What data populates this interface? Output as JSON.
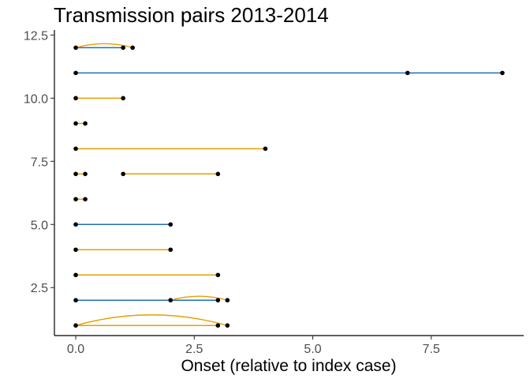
{
  "chart_data": {
    "type": "line",
    "title": "Transmission pairs 2013-2014",
    "xlabel": "Onset (relative to index case)",
    "ylabel": "",
    "xlim": [
      -0.45,
      9.45
    ],
    "ylim": [
      0.6,
      12.7
    ],
    "x_ticks": [
      0.0,
      2.5,
      5.0,
      7.5
    ],
    "x_tick_labels": [
      "0.0",
      "2.5",
      "5.0",
      "7.5"
    ],
    "y_ticks": [
      2.5,
      5.0,
      7.5,
      10.0,
      12.5
    ],
    "y_tick_labels": [
      "2.5",
      "5.0",
      "7.5",
      "10.0",
      "12.5"
    ],
    "colors": {
      "blue": "#1f6fb4",
      "orange": "#e69f00",
      "point": "#000000"
    },
    "series": [
      {
        "color": "blue",
        "segments": [
          {
            "x1": 0.0,
            "x2": 1.0,
            "y": 12
          },
          {
            "x1": 0.0,
            "x2": 7.0,
            "y": 11
          },
          {
            "x1": 7.0,
            "x2": 9.0,
            "y": 11
          },
          {
            "x1": 0.0,
            "x2": 2.0,
            "y": 5
          },
          {
            "x1": 0.0,
            "x2": 2.0,
            "y": 2
          },
          {
            "x1": 2.0,
            "x2": 3.0,
            "y": 2
          }
        ]
      },
      {
        "color": "orange",
        "segments": [
          {
            "x1": 0.0,
            "x2": 1.0,
            "y": 10
          },
          {
            "x1": 0.0,
            "x2": 0.2,
            "y": 9
          },
          {
            "x1": 0.0,
            "x2": 4.0,
            "y": 8
          },
          {
            "x1": 0.0,
            "x2": 0.2,
            "y": 7
          },
          {
            "x1": 1.0,
            "x2": 3.0,
            "y": 7
          },
          {
            "x1": 0.0,
            "x2": 0.2,
            "y": 6
          },
          {
            "x1": 0.0,
            "x2": 2.0,
            "y": 4
          },
          {
            "x1": 0.0,
            "x2": 3.0,
            "y": 3
          },
          {
            "x1": 0.0,
            "x2": 3.0,
            "y": 1
          }
        ]
      },
      {
        "color": "orange",
        "curved": true,
        "segments": [
          {
            "x1": 0.0,
            "x2": 1.2,
            "y": 12
          },
          {
            "x1": 2.0,
            "x2": 3.2,
            "y": 2
          },
          {
            "x1": 0.0,
            "x2": 3.2,
            "y": 1
          }
        ]
      }
    ],
    "points": [
      {
        "x": 0.0,
        "y": 12
      },
      {
        "x": 1.0,
        "y": 12
      },
      {
        "x": 1.2,
        "y": 12
      },
      {
        "x": 0.0,
        "y": 11
      },
      {
        "x": 7.0,
        "y": 11
      },
      {
        "x": 9.0,
        "y": 11
      },
      {
        "x": 0.0,
        "y": 10
      },
      {
        "x": 1.0,
        "y": 10
      },
      {
        "x": 0.0,
        "y": 9
      },
      {
        "x": 0.2,
        "y": 9
      },
      {
        "x": 0.0,
        "y": 8
      },
      {
        "x": 4.0,
        "y": 8
      },
      {
        "x": 0.0,
        "y": 7
      },
      {
        "x": 0.2,
        "y": 7
      },
      {
        "x": 1.0,
        "y": 7
      },
      {
        "x": 3.0,
        "y": 7
      },
      {
        "x": 0.0,
        "y": 6
      },
      {
        "x": 0.2,
        "y": 6
      },
      {
        "x": 0.0,
        "y": 5
      },
      {
        "x": 2.0,
        "y": 5
      },
      {
        "x": 0.0,
        "y": 4
      },
      {
        "x": 2.0,
        "y": 4
      },
      {
        "x": 0.0,
        "y": 3
      },
      {
        "x": 3.0,
        "y": 3
      },
      {
        "x": 0.0,
        "y": 2
      },
      {
        "x": 2.0,
        "y": 2
      },
      {
        "x": 3.0,
        "y": 2
      },
      {
        "x": 3.2,
        "y": 2
      },
      {
        "x": 0.0,
        "y": 1
      },
      {
        "x": 3.0,
        "y": 1
      },
      {
        "x": 3.2,
        "y": 1
      }
    ],
    "grid": false,
    "legend": "none"
  }
}
